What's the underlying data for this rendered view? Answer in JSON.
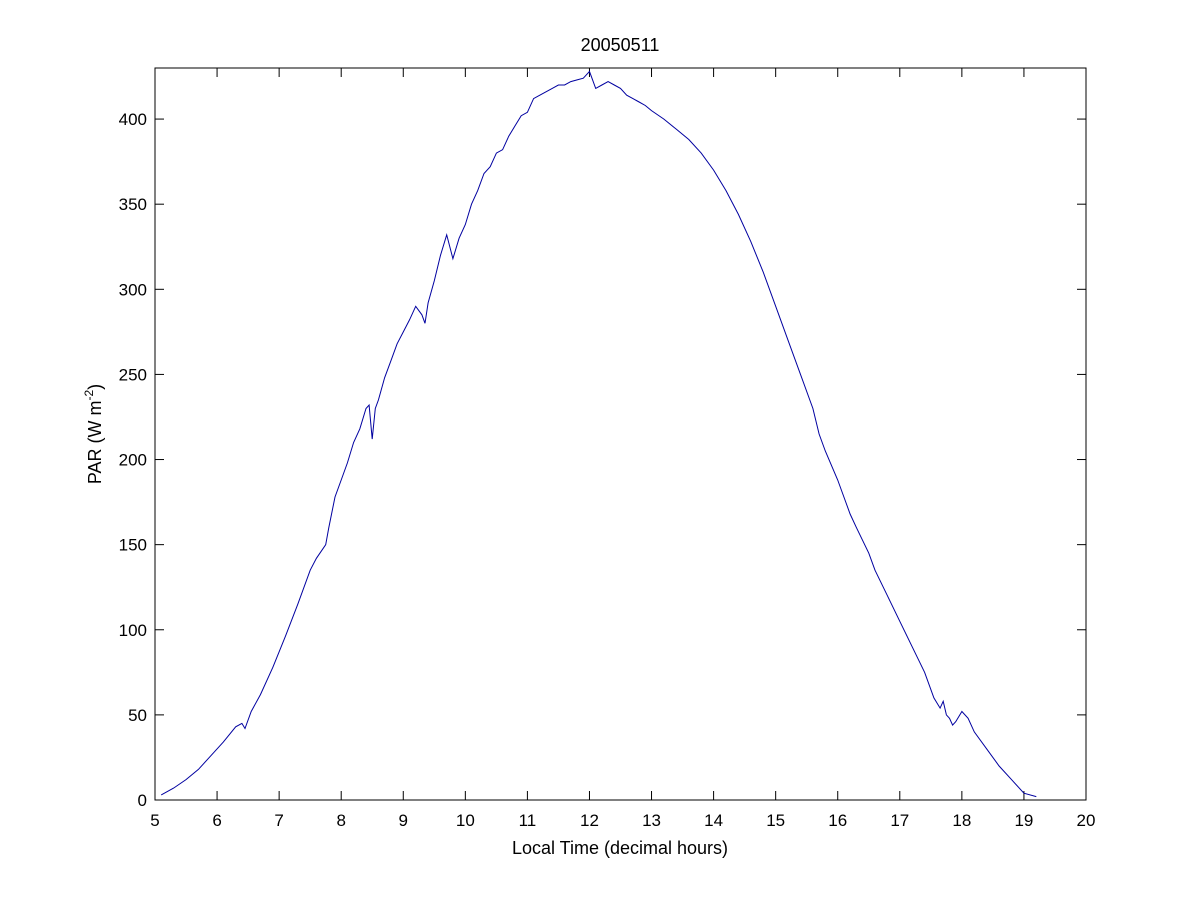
{
  "chart_data": {
    "type": "line",
    "title": "20050511",
    "xlabel": "Local Time (decimal hours)",
    "ylabel_main": "PAR (W m",
    "ylabel_sup": "-2",
    "ylabel_close": ")",
    "xlim": [
      5,
      20
    ],
    "ylim": [
      0,
      430
    ],
    "xticks": [
      5,
      6,
      7,
      8,
      9,
      10,
      11,
      12,
      13,
      14,
      15,
      16,
      17,
      18,
      19,
      20
    ],
    "yticks": [
      0,
      50,
      100,
      150,
      200,
      250,
      300,
      350,
      400
    ],
    "grid": false,
    "line_color": "#0000a0",
    "series": [
      {
        "x": [
          5.1,
          5.3,
          5.5,
          5.7,
          5.9,
          6.1,
          6.3,
          6.4,
          6.45,
          6.55,
          6.7,
          6.9,
          7.1,
          7.3,
          7.5,
          7.6,
          7.75,
          7.8,
          7.9,
          8.0,
          8.1,
          8.2,
          8.3,
          8.4,
          8.45,
          8.5,
          8.55,
          8.6,
          8.7,
          8.8,
          8.9,
          9.0,
          9.1,
          9.2,
          9.3,
          9.35,
          9.4,
          9.5,
          9.6,
          9.7,
          9.8,
          9.9,
          10.0,
          10.1,
          10.2,
          10.3,
          10.4,
          10.5,
          10.6,
          10.7,
          10.8,
          10.9,
          11.0,
          11.1,
          11.2,
          11.3,
          11.4,
          11.5,
          11.6,
          11.7,
          11.8,
          11.9,
          12.0,
          12.05,
          12.1,
          12.2,
          12.3,
          12.4,
          12.5,
          12.6,
          12.7,
          12.8,
          12.9,
          13.0,
          13.2,
          13.4,
          13.6,
          13.8,
          14.0,
          14.2,
          14.4,
          14.6,
          14.8,
          15.0,
          15.2,
          15.4,
          15.6,
          15.7,
          15.8,
          16.0,
          16.1,
          16.2,
          16.3,
          16.5,
          16.6,
          16.8,
          17.0,
          17.2,
          17.4,
          17.55,
          17.65,
          17.7,
          17.75,
          17.8,
          17.85,
          17.9,
          18.0,
          18.1,
          18.2,
          18.4,
          18.6,
          18.8,
          19.0,
          19.2
        ],
        "y": [
          3,
          7,
          12,
          18,
          26,
          34,
          43,
          45,
          42,
          52,
          62,
          78,
          96,
          115,
          135,
          142,
          150,
          160,
          178,
          188,
          198,
          210,
          218,
          230,
          232,
          212,
          230,
          235,
          248,
          258,
          268,
          275,
          282,
          290,
          285,
          280,
          292,
          305,
          320,
          332,
          318,
          330,
          338,
          350,
          358,
          368,
          372,
          380,
          382,
          390,
          396,
          402,
          404,
          412,
          414,
          416,
          418,
          420,
          420,
          422,
          423,
          424,
          428,
          423,
          418,
          420,
          422,
          420,
          418,
          414,
          412,
          410,
          408,
          405,
          400,
          394,
          388,
          380,
          370,
          358,
          344,
          328,
          310,
          290,
          270,
          250,
          230,
          215,
          205,
          188,
          178,
          168,
          160,
          145,
          135,
          120,
          105,
          90,
          75,
          60,
          54,
          58,
          50,
          48,
          44,
          46,
          52,
          48,
          40,
          30,
          20,
          12,
          4,
          2
        ]
      }
    ]
  }
}
